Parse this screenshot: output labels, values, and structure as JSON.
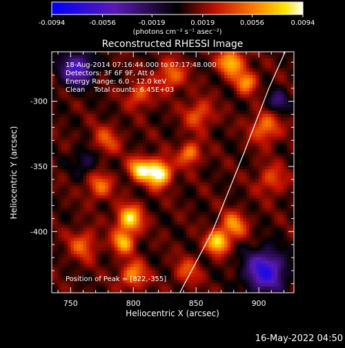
{
  "chart_data": {
    "type": "heatmap",
    "title": "Reconstructed RHESSI Image",
    "xlabel": "Heliocentric X (arcsec)",
    "ylabel": "Heliocentric Y (arcsec)",
    "xlim": [
      735,
      928
    ],
    "ylim": [
      -447,
      -262
    ],
    "x_ticks": [
      750,
      800,
      850,
      900
    ],
    "y_ticks": [
      -300,
      -350,
      -400
    ],
    "colorbar": {
      "ticks": [
        "-0.0094",
        "-0.0056",
        "-0.0019",
        "0.0019",
        "0.0056",
        "0.0094"
      ],
      "min": -0.0094,
      "max": 0.0094,
      "unit_label": "(photons cm⁻² s⁻¹ asec⁻²)"
    },
    "info_lines": [
      "18-Aug-2014 07:16:44.000 to 07:17:48.000",
      "Detectors: 3F 6F 9F, Att 0",
      "Energy Range: 6.0 - 12.0 keV",
      "Clean    Total counts: 6.45E+03"
    ],
    "peak_label": "Position of Peak = [822,-355]",
    "timestamp": "16-May-2022 04:50",
    "limb_points": [
      [
        837,
        -447
      ],
      [
        863,
        -400
      ],
      [
        888,
        -340
      ],
      [
        908,
        -290
      ],
      [
        921,
        -262
      ]
    ],
    "blobs": [
      {
        "x": 820,
        "y": -355,
        "amp": 1.0,
        "r": 7
      },
      {
        "x": 805,
        "y": -352,
        "amp": 0.75,
        "r": 6
      },
      {
        "x": 797,
        "y": -390,
        "amp": 0.8,
        "r": 7
      },
      {
        "x": 792,
        "y": -408,
        "amp": 0.65,
        "r": 6
      },
      {
        "x": 800,
        "y": -433,
        "amp": 0.55,
        "r": 7
      },
      {
        "x": 867,
        "y": -408,
        "amp": 0.8,
        "r": 6
      },
      {
        "x": 880,
        "y": -395,
        "amp": 0.55,
        "r": 7
      },
      {
        "x": 878,
        "y": -270,
        "amp": 0.7,
        "r": 7
      },
      {
        "x": 890,
        "y": -285,
        "amp": 0.55,
        "r": 6
      },
      {
        "x": 905,
        "y": -320,
        "amp": 0.5,
        "r": 8
      },
      {
        "x": 845,
        "y": -340,
        "amp": 0.55,
        "r": 6
      },
      {
        "x": 852,
        "y": -310,
        "amp": 0.4,
        "r": 8
      },
      {
        "x": 773,
        "y": -365,
        "amp": 0.45,
        "r": 7
      },
      {
        "x": 778,
        "y": -330,
        "amp": 0.35,
        "r": 8
      },
      {
        "x": 760,
        "y": -410,
        "amp": 0.4,
        "r": 8
      },
      {
        "x": 830,
        "y": -280,
        "amp": 0.45,
        "r": 8
      },
      {
        "x": 805,
        "y": -295,
        "amp": 0.4,
        "r": 7
      },
      {
        "x": 910,
        "y": -360,
        "amp": 0.35,
        "r": 8
      },
      {
        "x": 843,
        "y": -430,
        "amp": 0.35,
        "r": 7
      },
      {
        "x": 755,
        "y": -275,
        "amp": -0.7,
        "r": 9
      },
      {
        "x": 905,
        "y": -430,
        "amp": -0.85,
        "r": 11
      },
      {
        "x": 915,
        "y": -300,
        "amp": -0.4,
        "r": 6
      },
      {
        "x": 762,
        "y": -345,
        "amp": -0.3,
        "r": 7
      }
    ]
  }
}
